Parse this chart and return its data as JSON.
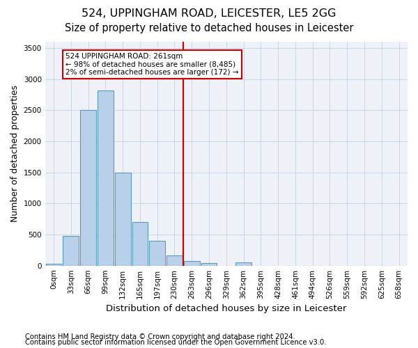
{
  "title": "524, UPPINGHAM ROAD, LEICESTER, LE5 2GG",
  "subtitle": "Size of property relative to detached houses in Leicester",
  "xlabel": "Distribution of detached houses by size in Leicester",
  "ylabel": "Number of detached properties",
  "bin_labels": [
    "0sqm",
    "33sqm",
    "66sqm",
    "99sqm",
    "132sqm",
    "165sqm",
    "197sqm",
    "230sqm",
    "263sqm",
    "296sqm",
    "329sqm",
    "362sqm",
    "395sqm",
    "428sqm",
    "461sqm",
    "494sqm",
    "526sqm",
    "559sqm",
    "592sqm",
    "625sqm",
    "658sqm"
  ],
  "bar_values": [
    30,
    480,
    2500,
    2820,
    1500,
    700,
    400,
    160,
    75,
    40,
    0,
    50,
    0,
    0,
    0,
    0,
    0,
    0,
    0,
    0,
    0
  ],
  "bar_color": "#b8d0e8",
  "bar_edge_color": "#5a9aba",
  "vline_label_index": 8,
  "vline_color": "#cc0000",
  "annotation_text": "524 UPPINGHAM ROAD: 261sqm\n← 98% of detached houses are smaller (8,485)\n2% of semi-detached houses are larger (172) →",
  "annotation_box_edgecolor": "#cc0000",
  "ylim": [
    0,
    3600
  ],
  "yticks": [
    0,
    500,
    1000,
    1500,
    2000,
    2500,
    3000,
    3500
  ],
  "footer_line1": "Contains HM Land Registry data © Crown copyright and database right 2024.",
  "footer_line2": "Contains public sector information licensed under the Open Government Licence v3.0.",
  "background_color": "#eef2f8",
  "grid_color": "#ccd4e4",
  "title_fontsize": 11.5,
  "subtitle_fontsize": 10.5,
  "axis_label_fontsize": 9,
  "tick_fontsize": 7.5,
  "footer_fontsize": 7.2
}
